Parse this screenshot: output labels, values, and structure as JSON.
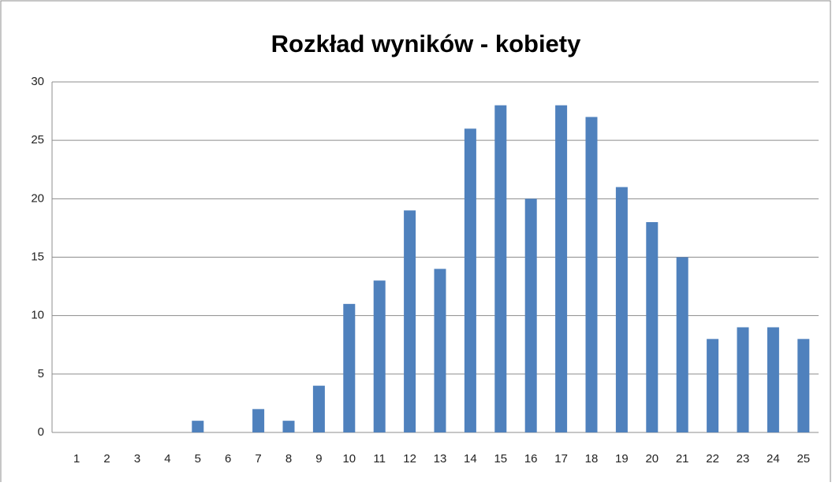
{
  "chart_data": {
    "type": "bar",
    "title": "Rozkład wyników - kobiety",
    "categories": [
      "1",
      "2",
      "3",
      "4",
      "5",
      "6",
      "7",
      "8",
      "9",
      "10",
      "11",
      "12",
      "13",
      "14",
      "15",
      "16",
      "17",
      "18",
      "19",
      "20",
      "21",
      "22",
      "23",
      "24",
      "25"
    ],
    "values": [
      0,
      0,
      0,
      0,
      1,
      0,
      2,
      1,
      4,
      11,
      13,
      19,
      14,
      26,
      28,
      20,
      28,
      27,
      21,
      18,
      15,
      8,
      9,
      9,
      8
    ],
    "color": "#4f81bd",
    "ylim": [
      0,
      30
    ],
    "yticks": [
      0,
      5,
      10,
      15,
      20,
      25,
      30
    ],
    "grid": true
  }
}
